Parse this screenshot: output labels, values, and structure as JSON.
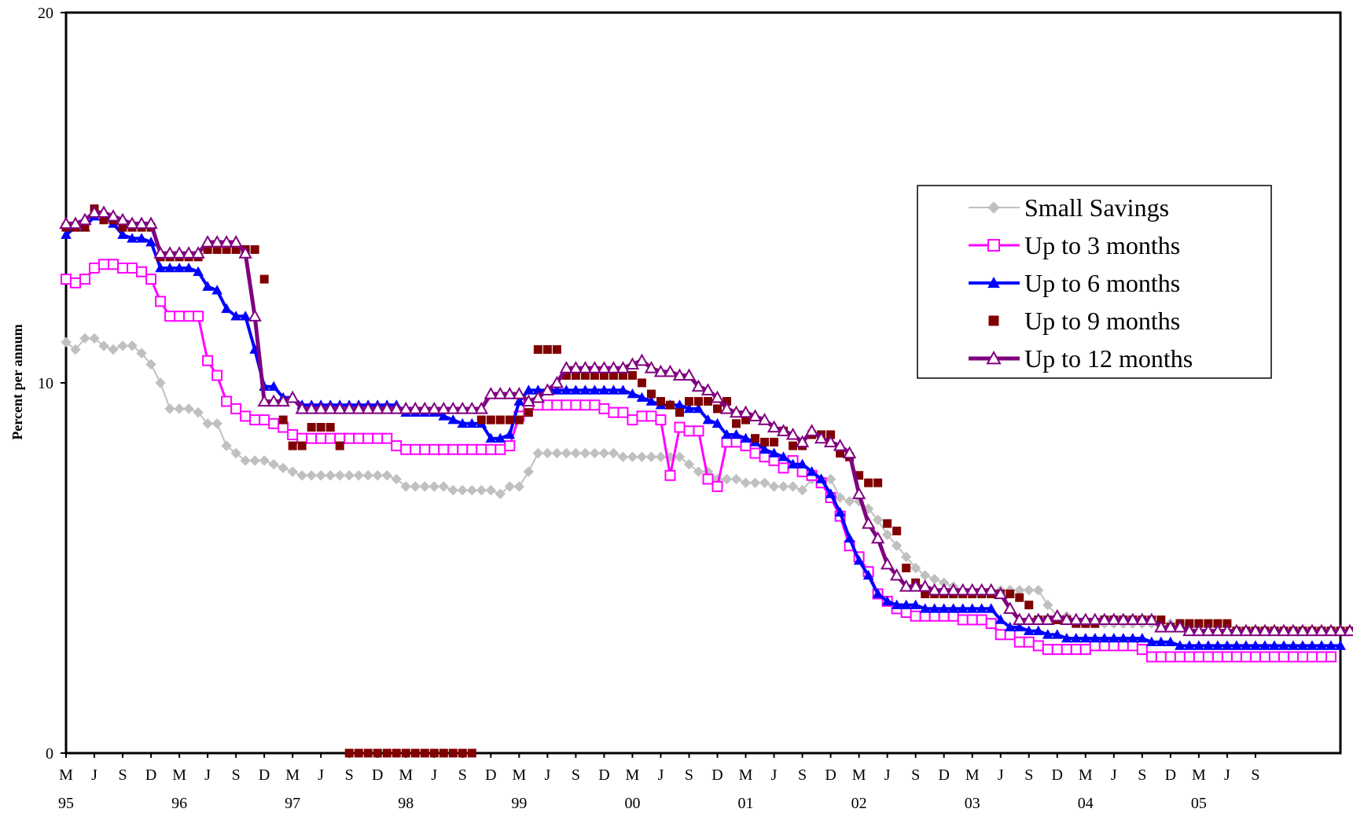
{
  "chart_data": {
    "type": "line",
    "ylabel": "Percent per annum",
    "ylim": [
      0,
      20
    ],
    "y_ticks": [
      "0",
      "10",
      "20"
    ],
    "x_tick_months": [
      "M",
      "J",
      "S",
      "D",
      "M",
      "J",
      "S",
      "D",
      "M",
      "J",
      "S",
      "D",
      "M",
      "J",
      "S",
      "D",
      "M",
      "J",
      "S",
      "D",
      "M",
      "J",
      "S",
      "D",
      "M",
      "J",
      "S",
      "D",
      "M",
      "J",
      "S",
      "D",
      "M",
      "J",
      "S",
      "D",
      "M",
      "J",
      "S",
      "D",
      "M",
      "J",
      "S"
    ],
    "x_tick_years": [
      "95",
      "96",
      "97",
      "98",
      "99",
      "00",
      "01",
      "02",
      "03",
      "04",
      "05"
    ],
    "legend_position": "right",
    "series": [
      {
        "name": "Small Savings",
        "color": "#c0c0c0",
        "marker": "diamond",
        "values": [
          11.1,
          10.9,
          11.2,
          11.2,
          11,
          10.9,
          11,
          11,
          10.8,
          10.5,
          10,
          9.3,
          9.3,
          9.3,
          9.2,
          8.9,
          8.9,
          8.3,
          8.1,
          7.9,
          7.9,
          7.9,
          7.8,
          7.7,
          7.6,
          7.5,
          7.5,
          7.5,
          7.5,
          7.5,
          7.5,
          7.5,
          7.5,
          7.5,
          7.5,
          7.4,
          7.2,
          7.2,
          7.2,
          7.2,
          7.2,
          7.1,
          7.1,
          7.1,
          7.1,
          7.1,
          7.0,
          7.2,
          7.2,
          7.6,
          8.1,
          8.1,
          8.1,
          8.1,
          8.1,
          8.1,
          8.1,
          8.1,
          8.1,
          8.0,
          8.0,
          8.0,
          8.0,
          8.0,
          8.0,
          8.0,
          7.8,
          7.6,
          7.6,
          7.4,
          7.4,
          7.4,
          7.3,
          7.3,
          7.3,
          7.2,
          7.2,
          7.2,
          7.1,
          7.4,
          7.4,
          7.4,
          6.9,
          6.8,
          6.8,
          6.6,
          6.3,
          5.9,
          5.6,
          5.3,
          5.0,
          4.8,
          4.7,
          4.6,
          4.5,
          4.4,
          4.4,
          4.4,
          4.4,
          4.4,
          4.4,
          4.4,
          4.4,
          4.4,
          4.0,
          3.7,
          3.7,
          3.6,
          3.5,
          3.5,
          3.5,
          3.5,
          3.5,
          3.5,
          3.5,
          3.5,
          3.5,
          3.5,
          3.5,
          3.4,
          3.3,
          3.3,
          3.3,
          3.3,
          3.3,
          3.3,
          3.3,
          3.3,
          3.3,
          3.3,
          3.3,
          3.3,
          3.3,
          3.3,
          3.3,
          3.3
        ]
      },
      {
        "name": "Up to 3 months",
        "color": "#ff00ff",
        "marker": "square-open",
        "values": [
          12.8,
          12.7,
          12.8,
          13.1,
          13.2,
          13.2,
          13.1,
          13.1,
          13,
          12.8,
          12.2,
          11.8,
          11.8,
          11.8,
          11.8,
          10.6,
          10.2,
          9.5,
          9.3,
          9.1,
          9.0,
          9.0,
          8.9,
          8.8,
          8.6,
          8.5,
          8.5,
          8.5,
          8.5,
          8.5,
          8.5,
          8.5,
          8.5,
          8.5,
          8.5,
          8.3,
          8.2,
          8.2,
          8.2,
          8.2,
          8.2,
          8.2,
          8.2,
          8.2,
          8.2,
          8.2,
          8.2,
          8.3,
          9.1,
          9.4,
          9.4,
          9.4,
          9.4,
          9.4,
          9.4,
          9.4,
          9.4,
          9.3,
          9.2,
          9.2,
          9.0,
          9.1,
          9.1,
          9.0,
          7.5,
          8.8,
          8.7,
          8.7,
          7.4,
          7.2,
          8.4,
          8.4,
          8.3,
          8.1,
          8.0,
          7.9,
          7.7,
          7.9,
          7.6,
          7.5,
          7.3,
          6.9,
          6.4,
          5.6,
          5.3,
          4.9,
          4.3,
          4.1,
          3.9,
          3.8,
          3.7,
          3.7,
          3.7,
          3.7,
          3.7,
          3.6,
          3.6,
          3.6,
          3.5,
          3.2,
          3.2,
          3.0,
          3.0,
          2.9,
          2.8,
          2.8,
          2.8,
          2.8,
          2.8,
          2.9,
          2.9,
          2.9,
          2.9,
          2.9,
          2.8,
          2.6,
          2.6,
          2.6,
          2.6,
          2.6,
          2.6,
          2.6,
          2.6,
          2.6,
          2.6,
          2.6,
          2.6,
          2.6,
          2.6,
          2.6,
          2.6,
          2.6,
          2.6,
          2.6,
          2.6
        ]
      },
      {
        "name": "Up to 6 months",
        "color": "#0000ff",
        "marker": "triangle",
        "values": [
          14.0,
          14.2,
          14.2,
          14.5,
          14.5,
          14.3,
          14.0,
          13.9,
          13.9,
          13.8,
          13.1,
          13.1,
          13.1,
          13.1,
          13.0,
          12.6,
          12.5,
          12.0,
          11.8,
          11.8,
          10.9,
          9.9,
          9.9,
          9.6,
          9.6,
          9.4,
          9.4,
          9.4,
          9.4,
          9.4,
          9.4,
          9.4,
          9.4,
          9.4,
          9.4,
          9.4,
          9.2,
          9.2,
          9.2,
          9.2,
          9.1,
          9.0,
          8.9,
          8.9,
          8.9,
          8.5,
          8.5,
          8.6,
          9.5,
          9.8,
          9.8,
          9.8,
          9.8,
          9.8,
          9.8,
          9.8,
          9.8,
          9.8,
          9.8,
          9.8,
          9.7,
          9.6,
          9.5,
          9.4,
          9.4,
          9.4,
          9.3,
          9.3,
          9.0,
          8.9,
          8.6,
          8.6,
          8.5,
          8.4,
          8.2,
          8.1,
          8.0,
          7.8,
          7.8,
          7.6,
          7.4,
          7.0,
          6.5,
          5.8,
          5.2,
          4.8,
          4.3,
          4.1,
          4.0,
          4.0,
          4.0,
          3.9,
          3.9,
          3.9,
          3.9,
          3.9,
          3.9,
          3.9,
          3.9,
          3.6,
          3.4,
          3.4,
          3.3,
          3.3,
          3.2,
          3.2,
          3.1,
          3.1,
          3.1,
          3.1,
          3.1,
          3.1,
          3.1,
          3.1,
          3.1,
          3.0,
          3.0,
          3.0,
          2.9,
          2.9,
          2.9,
          2.9,
          2.9,
          2.9,
          2.9,
          2.9,
          2.9,
          2.9,
          2.9,
          2.9,
          2.9,
          2.9,
          2.9,
          2.9,
          2.9,
          2.9
        ]
      },
      {
        "name": "Up to 9 months",
        "color": "#800000",
        "marker": "square-filled",
        "values": [
          14.2,
          14.2,
          14.2,
          14.7,
          14.4,
          14.4,
          14.2,
          14.2,
          14.2,
          14.2,
          13.4,
          13.4,
          13.4,
          13.4,
          13.4,
          13.6,
          13.6,
          13.6,
          13.6,
          13.6,
          13.6,
          12.8,
          null,
          9.0,
          8.3,
          8.3,
          8.8,
          8.8,
          8.8,
          8.3,
          0,
          0,
          0,
          0,
          0,
          0,
          0,
          0,
          0,
          0,
          0,
          0,
          0,
          0,
          9.0,
          9.0,
          9.0,
          9.0,
          9.0,
          9.2,
          10.9,
          10.9,
          10.9,
          10.2,
          10.2,
          10.2,
          10.2,
          10.2,
          10.2,
          10.2,
          10.2,
          10.0,
          9.7,
          9.5,
          9.4,
          9.2,
          9.5,
          9.5,
          9.5,
          9.3,
          9.5,
          8.9,
          9.0,
          8.5,
          8.4,
          8.4,
          8.7,
          8.3,
          8.3,
          8.6,
          8.6,
          8.6,
          8.1,
          8.0,
          7.5,
          7.3,
          7.3,
          6.2,
          6.0,
          5.0,
          4.6,
          4.3,
          4.3,
          4.3,
          4.3,
          4.3,
          4.3,
          4.3,
          4.3,
          4.3,
          4.3,
          4.2,
          4.0,
          3.6,
          3.6,
          3.6,
          3.6,
          3.5,
          3.5,
          3.5,
          3.6,
          3.6,
          3.6,
          3.6,
          3.6,
          3.6,
          3.6,
          3.4,
          3.5,
          3.5,
          3.5,
          3.5,
          3.5,
          3.5,
          3.3,
          3.3,
          3.3,
          3.3,
          3.3,
          3.3,
          3.3,
          3.3,
          3.3,
          3.3,
          3.3,
          3.3,
          3.3,
          3.3,
          3.3,
          3.3
        ]
      },
      {
        "name": "Up to 12 months",
        "color": "#800080",
        "marker": "triangle-open",
        "values": [
          14.3,
          14.3,
          14.4,
          14.6,
          14.6,
          14.5,
          14.4,
          14.3,
          14.3,
          14.3,
          13.5,
          13.5,
          13.5,
          13.5,
          13.5,
          13.8,
          13.8,
          13.8,
          13.8,
          13.5,
          11.8,
          9.5,
          9.5,
          9.5,
          9.6,
          9.3,
          9.3,
          9.3,
          9.3,
          9.3,
          9.3,
          9.3,
          9.3,
          9.3,
          9.3,
          9.3,
          9.3,
          9.3,
          9.3,
          9.3,
          9.3,
          9.3,
          9.3,
          9.3,
          9.3,
          9.7,
          9.7,
          9.7,
          9.7,
          9.5,
          9.6,
          9.8,
          10.0,
          10.4,
          10.4,
          10.4,
          10.4,
          10.4,
          10.4,
          10.4,
          10.5,
          10.6,
          10.4,
          10.3,
          10.3,
          10.2,
          10.2,
          9.9,
          9.8,
          9.6,
          9.3,
          9.2,
          9.2,
          9.1,
          9.0,
          8.8,
          8.7,
          8.6,
          8.4,
          8.7,
          8.5,
          8.4,
          8.3,
          8.1,
          7.0,
          6.2,
          5.8,
          5.1,
          4.8,
          4.5,
          4.5,
          4.5,
          4.4,
          4.4,
          4.4,
          4.4,
          4.4,
          4.4,
          4.4,
          4.3,
          3.9,
          3.6,
          3.6,
          3.6,
          3.6,
          3.7,
          3.6,
          3.6,
          3.6,
          3.6,
          3.6,
          3.6,
          3.6,
          3.6,
          3.6,
          3.6,
          3.4,
          3.4,
          3.4,
          3.3,
          3.3,
          3.3,
          3.3,
          3.3,
          3.3,
          3.3,
          3.3,
          3.3,
          3.3,
          3.3,
          3.3,
          3.3,
          3.3,
          3.3,
          3.3,
          3.3,
          3.3
        ]
      }
    ]
  }
}
